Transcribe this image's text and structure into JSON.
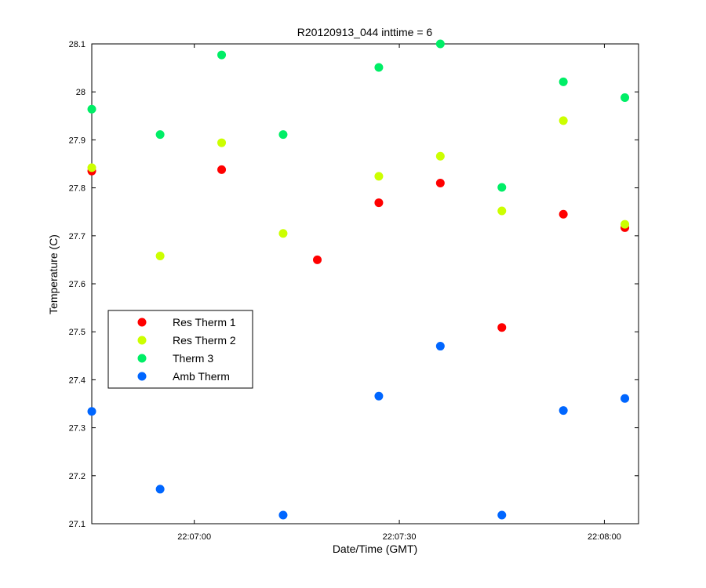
{
  "chart_data": {
    "type": "scatter",
    "title": "R20120913_044 inttime = 6",
    "xlabel": "Date/Time (GMT)",
    "ylabel": "Temperature (C)",
    "ylim": [
      27.1,
      28.1
    ],
    "yticks": [
      "27.1",
      "27.2",
      "27.3",
      "27.4",
      "27.5",
      "27.6",
      "27.7",
      "27.8",
      "27.9",
      "28",
      "28.1"
    ],
    "xlim": [
      "22:06:45",
      "22:08:05"
    ],
    "xticks": [
      "22:07:00",
      "22:07:30",
      "22:08:00"
    ],
    "grid": false,
    "legend_position": "middle-left",
    "series": [
      {
        "name": "Res Therm 1",
        "color": "#ff0000",
        "x": [
          "22:06:45",
          "22:07:04",
          "22:07:18",
          "22:07:27",
          "22:07:36",
          "22:07:45",
          "22:07:54",
          "22:08:03"
        ],
        "y": [
          27.835,
          27.838,
          27.65,
          27.769,
          27.81,
          27.509,
          27.745,
          27.717
        ]
      },
      {
        "name": "Res Therm 2",
        "color": "#ccff00",
        "x": [
          "22:06:45",
          "22:06:55",
          "22:07:04",
          "22:07:13",
          "22:07:27",
          "22:07:36",
          "22:07:45",
          "22:07:54",
          "22:08:03"
        ],
        "y": [
          27.842,
          27.658,
          27.894,
          27.705,
          27.824,
          27.866,
          27.752,
          27.94,
          27.724
        ]
      },
      {
        "name": "Therm 3",
        "color": "#00ee66",
        "x": [
          "22:06:45",
          "22:06:55",
          "22:07:04",
          "22:07:13",
          "22:07:27",
          "22:07:36",
          "22:07:45",
          "22:07:54",
          "22:08:03"
        ],
        "y": [
          27.964,
          27.911,
          28.077,
          27.911,
          28.051,
          28.1,
          27.801,
          28.021,
          27.988
        ]
      },
      {
        "name": "Amb Therm",
        "color": "#0066ff",
        "x": [
          "22:06:45",
          "22:06:55",
          "22:07:13",
          "22:07:27",
          "22:07:36",
          "22:07:45",
          "22:07:54",
          "22:08:03"
        ],
        "y": [
          27.334,
          27.172,
          27.118,
          27.366,
          27.47,
          27.118,
          27.336,
          27.361
        ]
      }
    ]
  }
}
